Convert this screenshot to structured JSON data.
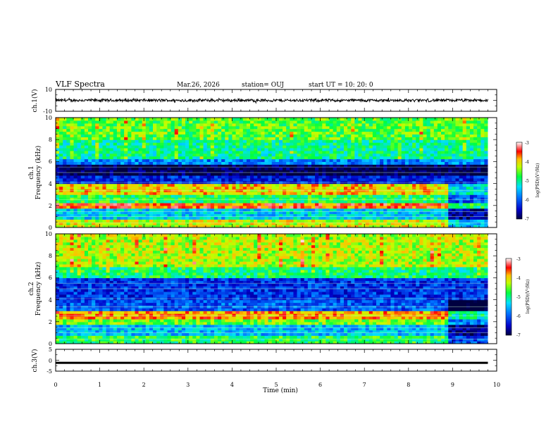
{
  "header": {
    "title": "VLF Spectra",
    "date": "Mar.26, 2026",
    "station": "station= OUJ",
    "start_time": "start  UT =   10: 20: 0"
  },
  "chart_data": [
    {
      "type": "line",
      "panel": "ch1-waveform",
      "ylabel": "ch.1(V)",
      "xlabel": "",
      "xlim": [
        0,
        10
      ],
      "ylim": [
        -10,
        10
      ],
      "yticks": [
        "10",
        "-10"
      ],
      "series": [
        {
          "values_summary": "noise waveform around 0 V, amplitude about ±1.5 V, from t=0 to t=9.8 min",
          "level": 0,
          "amplitude": 1.5
        }
      ]
    },
    {
      "type": "heatmap",
      "panel": "ch1-spectrogram",
      "ylabel": "ch.1\nFrequency (kHz)",
      "xlim": [
        0,
        10
      ],
      "ylim": [
        0,
        10
      ],
      "yticks": [
        "0",
        "2",
        "4",
        "6",
        "8",
        "10"
      ],
      "colorbar": {
        "label": "log(PSD)(V²/Hz)",
        "range": [
          -7,
          -3
        ],
        "ticks": [
          "-3",
          "-4",
          "-5",
          "-6",
          "-7"
        ]
      },
      "bands": [
        {
          "f_low": 8.0,
          "f_high": 10.0,
          "log_psd": -4.6,
          "note": "green/yellow background with spikes"
        },
        {
          "f_low": 6.2,
          "f_high": 8.0,
          "log_psd": -5.0
        },
        {
          "f_low": 5.6,
          "f_high": 6.2,
          "log_psd": -5.8
        },
        {
          "f_low": 4.6,
          "f_high": 5.6,
          "log_psd": -7.0,
          "note": "dark quiet band"
        },
        {
          "f_low": 3.8,
          "f_high": 4.6,
          "log_psd": -6.3
        },
        {
          "f_low": 3.0,
          "f_high": 3.8,
          "log_psd": -4.0,
          "note": "red/yellow emission until 8.9 min"
        },
        {
          "f_low": 2.2,
          "f_high": 3.0,
          "log_psd": -4.8
        },
        {
          "f_low": 1.6,
          "f_high": 2.2,
          "log_psd": -3.6,
          "note": "white/red emission until 8.9 min"
        },
        {
          "f_low": 0.6,
          "f_high": 1.6,
          "log_psd": -5.4
        },
        {
          "f_low": 0.0,
          "f_high": 0.6,
          "log_psd": -4.2
        }
      ],
      "change_time_min": 8.9
    },
    {
      "type": "heatmap",
      "panel": "ch2-spectrogram",
      "ylabel": "ch.2\nFrequency (kHz)",
      "xlim": [
        0,
        10
      ],
      "ylim": [
        0,
        10
      ],
      "yticks": [
        "0",
        "2",
        "4",
        "6",
        "8",
        "10"
      ],
      "colorbar": {
        "label": "log(PSD)(V²/Hz)",
        "range": [
          -7,
          -3
        ],
        "ticks": [
          "-3",
          "-4",
          "-5",
          "-6",
          "-7"
        ]
      },
      "bands": [
        {
          "f_low": 7.0,
          "f_high": 10.0,
          "log_psd": -4.3,
          "note": "yellow/green with red spikes"
        },
        {
          "f_low": 5.8,
          "f_high": 7.0,
          "log_psd": -4.9
        },
        {
          "f_low": 3.8,
          "f_high": 5.8,
          "log_psd": -6.2
        },
        {
          "f_low": 3.0,
          "f_high": 3.8,
          "log_psd": -6.0
        },
        {
          "f_low": 2.2,
          "f_high": 3.0,
          "log_psd": -3.8,
          "note": "red/white emission until 8.9 min"
        },
        {
          "f_low": 1.6,
          "f_high": 2.2,
          "log_psd": -4.5
        },
        {
          "f_low": 0.6,
          "f_high": 1.6,
          "log_psd": -5.5
        },
        {
          "f_low": 0.0,
          "f_high": 0.6,
          "log_psd": -4.8
        }
      ],
      "change_time_min": 8.9
    },
    {
      "type": "line",
      "panel": "ch3-waveform",
      "ylabel": "ch.3(V)",
      "xlabel": "Time (min)",
      "xlim": [
        0,
        10
      ],
      "ylim": [
        -5,
        5
      ],
      "yticks": [
        "5",
        "0",
        "-5"
      ],
      "xticks": [
        "0",
        "1",
        "2",
        "3",
        "4",
        "5",
        "6",
        "7",
        "8",
        "9",
        "10"
      ],
      "series": [
        {
          "values_summary": "flat saturated line near -1 V, thick, from t=0 to t=9.8 min",
          "level": -1,
          "amplitude": 0.3
        }
      ]
    }
  ],
  "colors": {
    "colormap": [
      "#000080",
      "#0000ff",
      "#00ffff",
      "#00ff00",
      "#ffff00",
      "#ff0000",
      "#ffffff"
    ],
    "axes": "#000000",
    "waveform": "#000000"
  }
}
